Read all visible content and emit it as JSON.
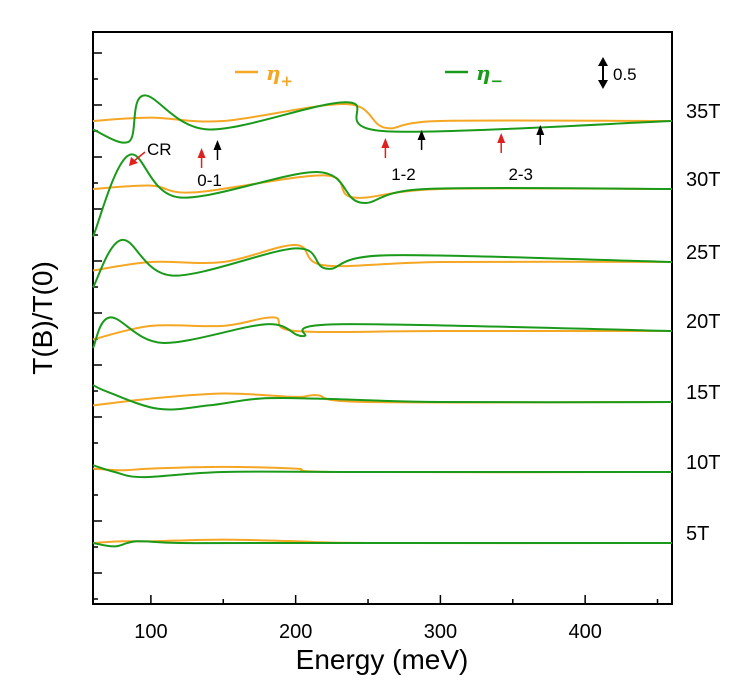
{
  "chart_data": {
    "type": "line",
    "title": "",
    "xlabel": "Energy (meV)",
    "ylabel": "T(B)/T(0)",
    "xlim": [
      60,
      460
    ],
    "x_ticks": [
      "100",
      "200",
      "300",
      "400"
    ],
    "grid": false,
    "legend": {
      "placement": "top",
      "entries": [
        {
          "label": "η",
          "subscript": "+",
          "color": "#F5A623"
        },
        {
          "label": "η",
          "subscript": "−",
          "color": "#1A9A1A"
        }
      ]
    },
    "scale_bar": {
      "label": "0.5",
      "value": 0.5
    },
    "fields": [
      "5T",
      "10T",
      "15T",
      "20T",
      "25T",
      "30T",
      "35T"
    ],
    "series": [
      {
        "field": "5T",
        "eta_plus": [
          [
            60,
            1.0
          ],
          [
            80,
            1.01
          ],
          [
            100,
            1.01
          ],
          [
            150,
            1.02
          ],
          [
            200,
            1.01
          ],
          [
            250,
            1.0
          ],
          [
            460,
            1.0
          ]
        ],
        "eta_minus": [
          [
            60,
            1.0
          ],
          [
            75,
            0.98
          ],
          [
            90,
            1.01
          ],
          [
            120,
            1.0
          ],
          [
            200,
            1.0
          ],
          [
            460,
            1.0
          ]
        ]
      },
      {
        "field": "10T",
        "eta_plus": [
          [
            60,
            1.02
          ],
          [
            80,
            1.01
          ],
          [
            100,
            1.02
          ],
          [
            150,
            1.03
          ],
          [
            200,
            1.02
          ],
          [
            230,
            1.0
          ],
          [
            460,
            1.0
          ]
        ],
        "eta_minus": [
          [
            60,
            1.04
          ],
          [
            75,
            1.0
          ],
          [
            95,
            0.97
          ],
          [
            150,
            1.0
          ],
          [
            250,
            1.0
          ],
          [
            460,
            1.0
          ]
        ]
      },
      {
        "field": "15T",
        "eta_plus": [
          [
            60,
            0.98
          ],
          [
            100,
            1.02
          ],
          [
            150,
            1.05
          ],
          [
            200,
            1.03
          ],
          [
            215,
            1.04
          ],
          [
            250,
            1.0
          ],
          [
            460,
            1.0
          ]
        ],
        "eta_minus": [
          [
            60,
            1.1
          ],
          [
            70,
            1.06
          ],
          [
            105,
            0.96
          ],
          [
            140,
            0.98
          ],
          [
            175,
            1.02
          ],
          [
            215,
            1.02
          ],
          [
            300,
            1.0
          ],
          [
            460,
            1.0
          ]
        ]
      },
      {
        "field": "20T",
        "eta_plus": [
          [
            60,
            0.95
          ],
          [
            100,
            1.03
          ],
          [
            150,
            1.03
          ],
          [
            185,
            1.08
          ],
          [
            200,
            1.0
          ],
          [
            300,
            1.0
          ],
          [
            460,
            1.0
          ]
        ],
        "eta_minus": [
          [
            60,
            0.9
          ],
          [
            72,
            1.08
          ],
          [
            108,
            0.93
          ],
          [
            180,
            1.04
          ],
          [
            205,
            0.97
          ],
          [
            230,
            1.04
          ],
          [
            460,
            1.0
          ]
        ]
      },
      {
        "field": "25T",
        "eta_plus": [
          [
            60,
            0.95
          ],
          [
            100,
            1.0
          ],
          [
            150,
            1.0
          ],
          [
            200,
            1.1
          ],
          [
            220,
            0.98
          ],
          [
            300,
            1.0
          ],
          [
            460,
            1.0
          ]
        ],
        "eta_minus": [
          [
            60,
            0.85
          ],
          [
            80,
            1.13
          ],
          [
            115,
            0.92
          ],
          [
            200,
            1.08
          ],
          [
            222,
            0.96
          ],
          [
            265,
            1.04
          ],
          [
            460,
            1.0
          ]
        ]
      },
      {
        "field": "30T",
        "eta_plus": [
          [
            60,
            1.0
          ],
          [
            100,
            1.02
          ],
          [
            130,
            0.98
          ],
          [
            220,
            1.08
          ],
          [
            240,
            0.95
          ],
          [
            300,
            1.0
          ],
          [
            460,
            1.0
          ]
        ],
        "eta_minus": [
          [
            60,
            0.72
          ],
          [
            85,
            1.2
          ],
          [
            120,
            0.95
          ],
          [
            215,
            1.1
          ],
          [
            245,
            0.92
          ],
          [
            290,
            1.0
          ],
          [
            460,
            1.0
          ]
        ]
      },
      {
        "field": "35T",
        "eta_plus": [
          [
            60,
            1.0
          ],
          [
            100,
            1.02
          ],
          [
            150,
            1.0
          ],
          [
            235,
            1.1
          ],
          [
            262,
            0.96
          ],
          [
            300,
            1.0
          ],
          [
            460,
            1.0
          ]
        ],
        "eta_minus": [
          [
            60,
            0.95
          ],
          [
            85,
            0.88
          ],
          [
            95,
            1.15
          ],
          [
            140,
            0.95
          ],
          [
            235,
            1.11
          ],
          [
            262,
            0.94
          ],
          [
            460,
            1.0
          ]
        ]
      }
    ],
    "annotations": [
      {
        "text": "CR",
        "x": 85
      },
      {
        "text": "0-1",
        "arrows": [
          {
            "color": "#E02020",
            "x": 135
          },
          {
            "color": "#000000",
            "x": 146
          }
        ]
      },
      {
        "text": "1-2",
        "arrows": [
          {
            "color": "#E02020",
            "x": 262
          },
          {
            "color": "#000000",
            "x": 287
          }
        ]
      },
      {
        "text": "2-3",
        "arrows": [
          {
            "color": "#E02020",
            "x": 342
          },
          {
            "color": "#000000",
            "x": 369
          }
        ]
      }
    ]
  }
}
